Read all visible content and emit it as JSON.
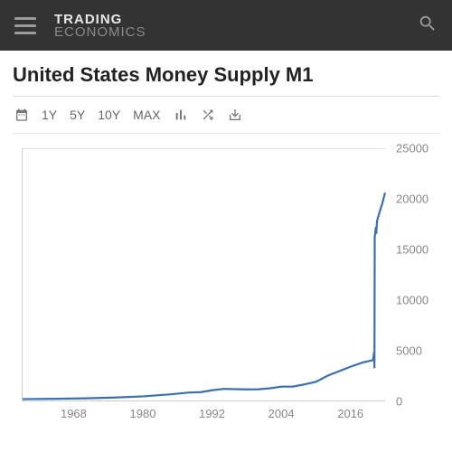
{
  "header": {
    "logo_line1": "TRADING",
    "logo_line2": "ECONOMICS"
  },
  "page": {
    "title": "United States Money Supply M1"
  },
  "toolbar": {
    "ranges": [
      "1Y",
      "5Y",
      "10Y",
      "MAX"
    ]
  },
  "chart": {
    "type": "line",
    "line_color": "#3b6fb0",
    "line_width": 2.2,
    "background_color": "#ffffff",
    "axis_color": "#cccccc",
    "ylim": [
      0,
      25000
    ],
    "y_ticks": [
      0,
      5000,
      10000,
      15000,
      20000,
      25000
    ],
    "xlim": [
      1959,
      2022
    ],
    "x_ticks": [
      1968,
      1980,
      1992,
      2004,
      2016
    ],
    "label_color": "#888888",
    "label_fontsize": 13,
    "series": [
      {
        "x": 1959,
        "y": 140
      },
      {
        "x": 1965,
        "y": 170
      },
      {
        "x": 1970,
        "y": 210
      },
      {
        "x": 1975,
        "y": 290
      },
      {
        "x": 1980,
        "y": 410
      },
      {
        "x": 1985,
        "y": 620
      },
      {
        "x": 1988,
        "y": 790
      },
      {
        "x": 1990,
        "y": 830
      },
      {
        "x": 1992,
        "y": 1020
      },
      {
        "x": 1994,
        "y": 1150
      },
      {
        "x": 1996,
        "y": 1120
      },
      {
        "x": 1998,
        "y": 1100
      },
      {
        "x": 2000,
        "y": 1110
      },
      {
        "x": 2002,
        "y": 1210
      },
      {
        "x": 2004,
        "y": 1370
      },
      {
        "x": 2006,
        "y": 1380
      },
      {
        "x": 2008,
        "y": 1600
      },
      {
        "x": 2010,
        "y": 1850
      },
      {
        "x": 2012,
        "y": 2450
      },
      {
        "x": 2014,
        "y": 2900
      },
      {
        "x": 2016,
        "y": 3350
      },
      {
        "x": 2018,
        "y": 3750
      },
      {
        "x": 2019.9,
        "y": 4000
      },
      {
        "x": 2020.1,
        "y": 4800
      },
      {
        "x": 2020.15,
        "y": 3200
      },
      {
        "x": 2020.2,
        "y": 16200
      },
      {
        "x": 2020.4,
        "y": 17200
      },
      {
        "x": 2020.45,
        "y": 16500
      },
      {
        "x": 2020.6,
        "y": 17800
      },
      {
        "x": 2021.0,
        "y": 18600
      },
      {
        "x": 2021.5,
        "y": 19500
      },
      {
        "x": 2022.0,
        "y": 20600
      }
    ]
  }
}
